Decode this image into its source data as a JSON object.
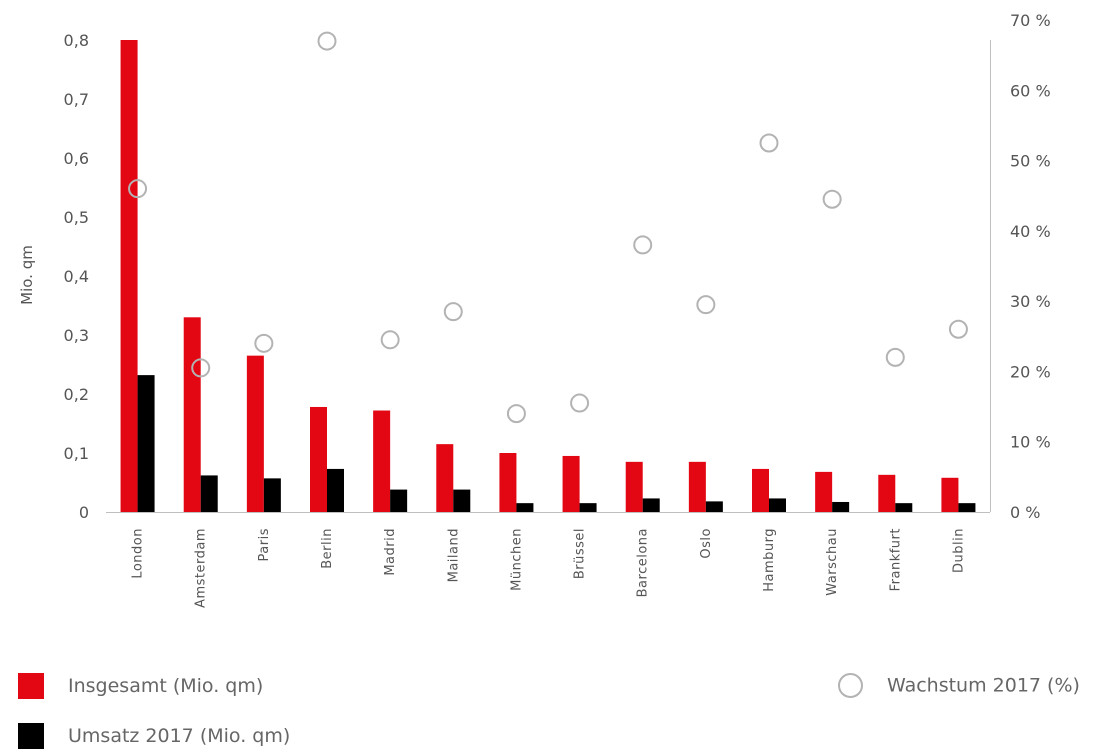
{
  "chart_data": {
    "type": "bar",
    "categories": [
      "London",
      "Amsterdam",
      "Paris",
      "Berlin",
      "Madrid",
      "Mailand",
      "München",
      "Brüssel",
      "Barcelona",
      "Oslo",
      "Hamburg",
      "Warschau",
      "Frankfurt",
      "Dublin"
    ],
    "series": [
      {
        "name": "Insgesamt  (Mio. qm)",
        "type": "bar",
        "axis": "left",
        "color": "#e30613",
        "values": [
          0.8,
          0.33,
          0.265,
          0.178,
          0.172,
          0.115,
          0.1,
          0.095,
          0.085,
          0.085,
          0.073,
          0.068,
          0.063,
          0.058
        ]
      },
      {
        "name": "Umsatz 2017  (Mio. qm)",
        "type": "bar",
        "axis": "left",
        "color": "#000000",
        "values": [
          0.232,
          0.062,
          0.057,
          0.073,
          0.038,
          0.038,
          0.015,
          0.015,
          0.023,
          0.018,
          0.023,
          0.017,
          0.015,
          0.015
        ]
      },
      {
        "name": "Wachstum 2017 (%)",
        "type": "scatter",
        "axis": "right",
        "color": "#b3b3b3",
        "values": [
          46,
          20.5,
          24,
          67,
          24.5,
          28.5,
          14,
          15.5,
          38,
          29.5,
          52.5,
          44.5,
          22,
          26
        ]
      }
    ],
    "y_left": {
      "label": "Mio. qm",
      "min": 0,
      "max": 0.8,
      "ticks": [
        "0",
        "0,1",
        "0,2",
        "0,3",
        "0,4",
        "0,5",
        "0,6",
        "0,7",
        "0,8"
      ]
    },
    "y_right": {
      "min": 0,
      "max": 70,
      "ticks": [
        "0 %",
        "10 %",
        "20 %",
        "30 %",
        "40 %",
        "50 %",
        "60 %",
        "70 %"
      ]
    },
    "grid": false,
    "legend_position": "bottom"
  },
  "legend": {
    "insgesamt": "Insgesamt  (Mio. qm)",
    "umsatz": "Umsatz 2017  (Mio. qm)",
    "wachstum": "Wachstum 2017 (%)"
  }
}
